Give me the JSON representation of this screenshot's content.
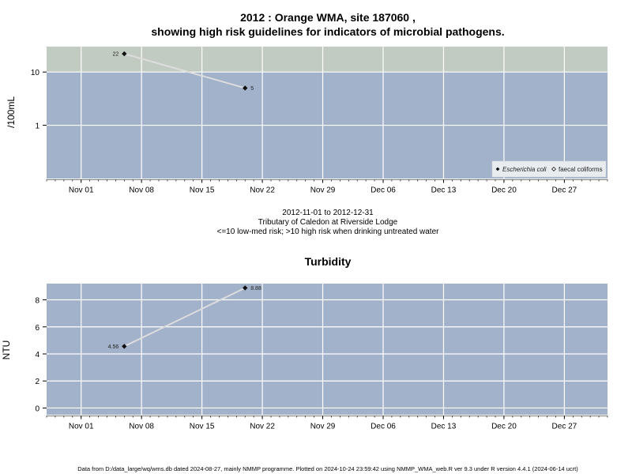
{
  "title_line1": "2012 : Orange WMA, site 187060 ,",
  "title_line2": "showing high risk guidelines for indicators of microbial pathogens.",
  "caption": {
    "date_range": "2012-11-01 to 2012-12-31",
    "site_desc": "Tributary of Caledon at Riverside Lodge",
    "risk_note": "<=10 low-med risk; >10 high risk when drinking untreated water"
  },
  "footer": "Data from D:/data_large/wq/wms.db dated 2024-08-27, mainly NMMP programme. Plotted on 2024-10-24 23:59:42 using NMMP_WMA_web.R ver 9.3 under R version 4.4.1 (2024-06-14 ucrt)",
  "colors": {
    "panel_bg": "#a2b2cb",
    "high_risk_band": "#c2cbc1",
    "gridline": "#ffffff",
    "series_line": "#dddddd",
    "marker": "#111111"
  },
  "chart_data": [
    {
      "type": "line",
      "ylabel": "/100mL",
      "yscale": "log",
      "ylim": [
        0.1,
        30
      ],
      "yticks": [
        1,
        10
      ],
      "ytick_labels": [
        "1",
        "10"
      ],
      "high_risk_threshold": 10,
      "x_date_range": [
        "2012-10-28",
        "2013-01-01"
      ],
      "xticks": [
        "2012-11-01",
        "2012-11-08",
        "2012-11-15",
        "2012-11-22",
        "2012-11-29",
        "2012-12-06",
        "2012-12-13",
        "2012-12-20",
        "2012-12-27"
      ],
      "xtick_labels": [
        "Nov 01",
        "Nov 08",
        "Nov 15",
        "Nov 22",
        "Nov 29",
        "Dec 06",
        "Dec 13",
        "Dec 20",
        "Dec 27"
      ],
      "series": [
        {
          "name": "Escherichia coli",
          "marker": "filled-diamond",
          "points": [
            {
              "x": "2012-11-06",
              "y": 22,
              "label": "22"
            },
            {
              "x": "2012-11-20",
              "y": 5,
              "label": "5"
            }
          ]
        },
        {
          "name": "faecal coliforms",
          "marker": "open-diamond",
          "points": []
        }
      ],
      "legend_position": "bottom-right",
      "grid": true
    },
    {
      "type": "line",
      "title": "Turbidity",
      "ylabel": "NTU",
      "ylim": [
        -0.5,
        9.2
      ],
      "yticks": [
        0,
        2,
        4,
        6,
        8
      ],
      "ytick_labels": [
        "0",
        "2",
        "4",
        "6",
        "8"
      ],
      "x_date_range": [
        "2012-10-28",
        "2013-01-01"
      ],
      "xticks": [
        "2012-11-01",
        "2012-11-08",
        "2012-11-15",
        "2012-11-22",
        "2012-11-29",
        "2012-12-06",
        "2012-12-13",
        "2012-12-20",
        "2012-12-27"
      ],
      "xtick_labels": [
        "Nov 01",
        "Nov 08",
        "Nov 15",
        "Nov 22",
        "Nov 29",
        "Dec 06",
        "Dec 13",
        "Dec 20",
        "Dec 27"
      ],
      "series": [
        {
          "marker": "filled-diamond",
          "points": [
            {
              "x": "2012-11-06",
              "y": 4.56,
              "label": "4.56"
            },
            {
              "x": "2012-11-20",
              "y": 8.88,
              "label": "8.88"
            }
          ]
        }
      ],
      "grid": true
    }
  ]
}
